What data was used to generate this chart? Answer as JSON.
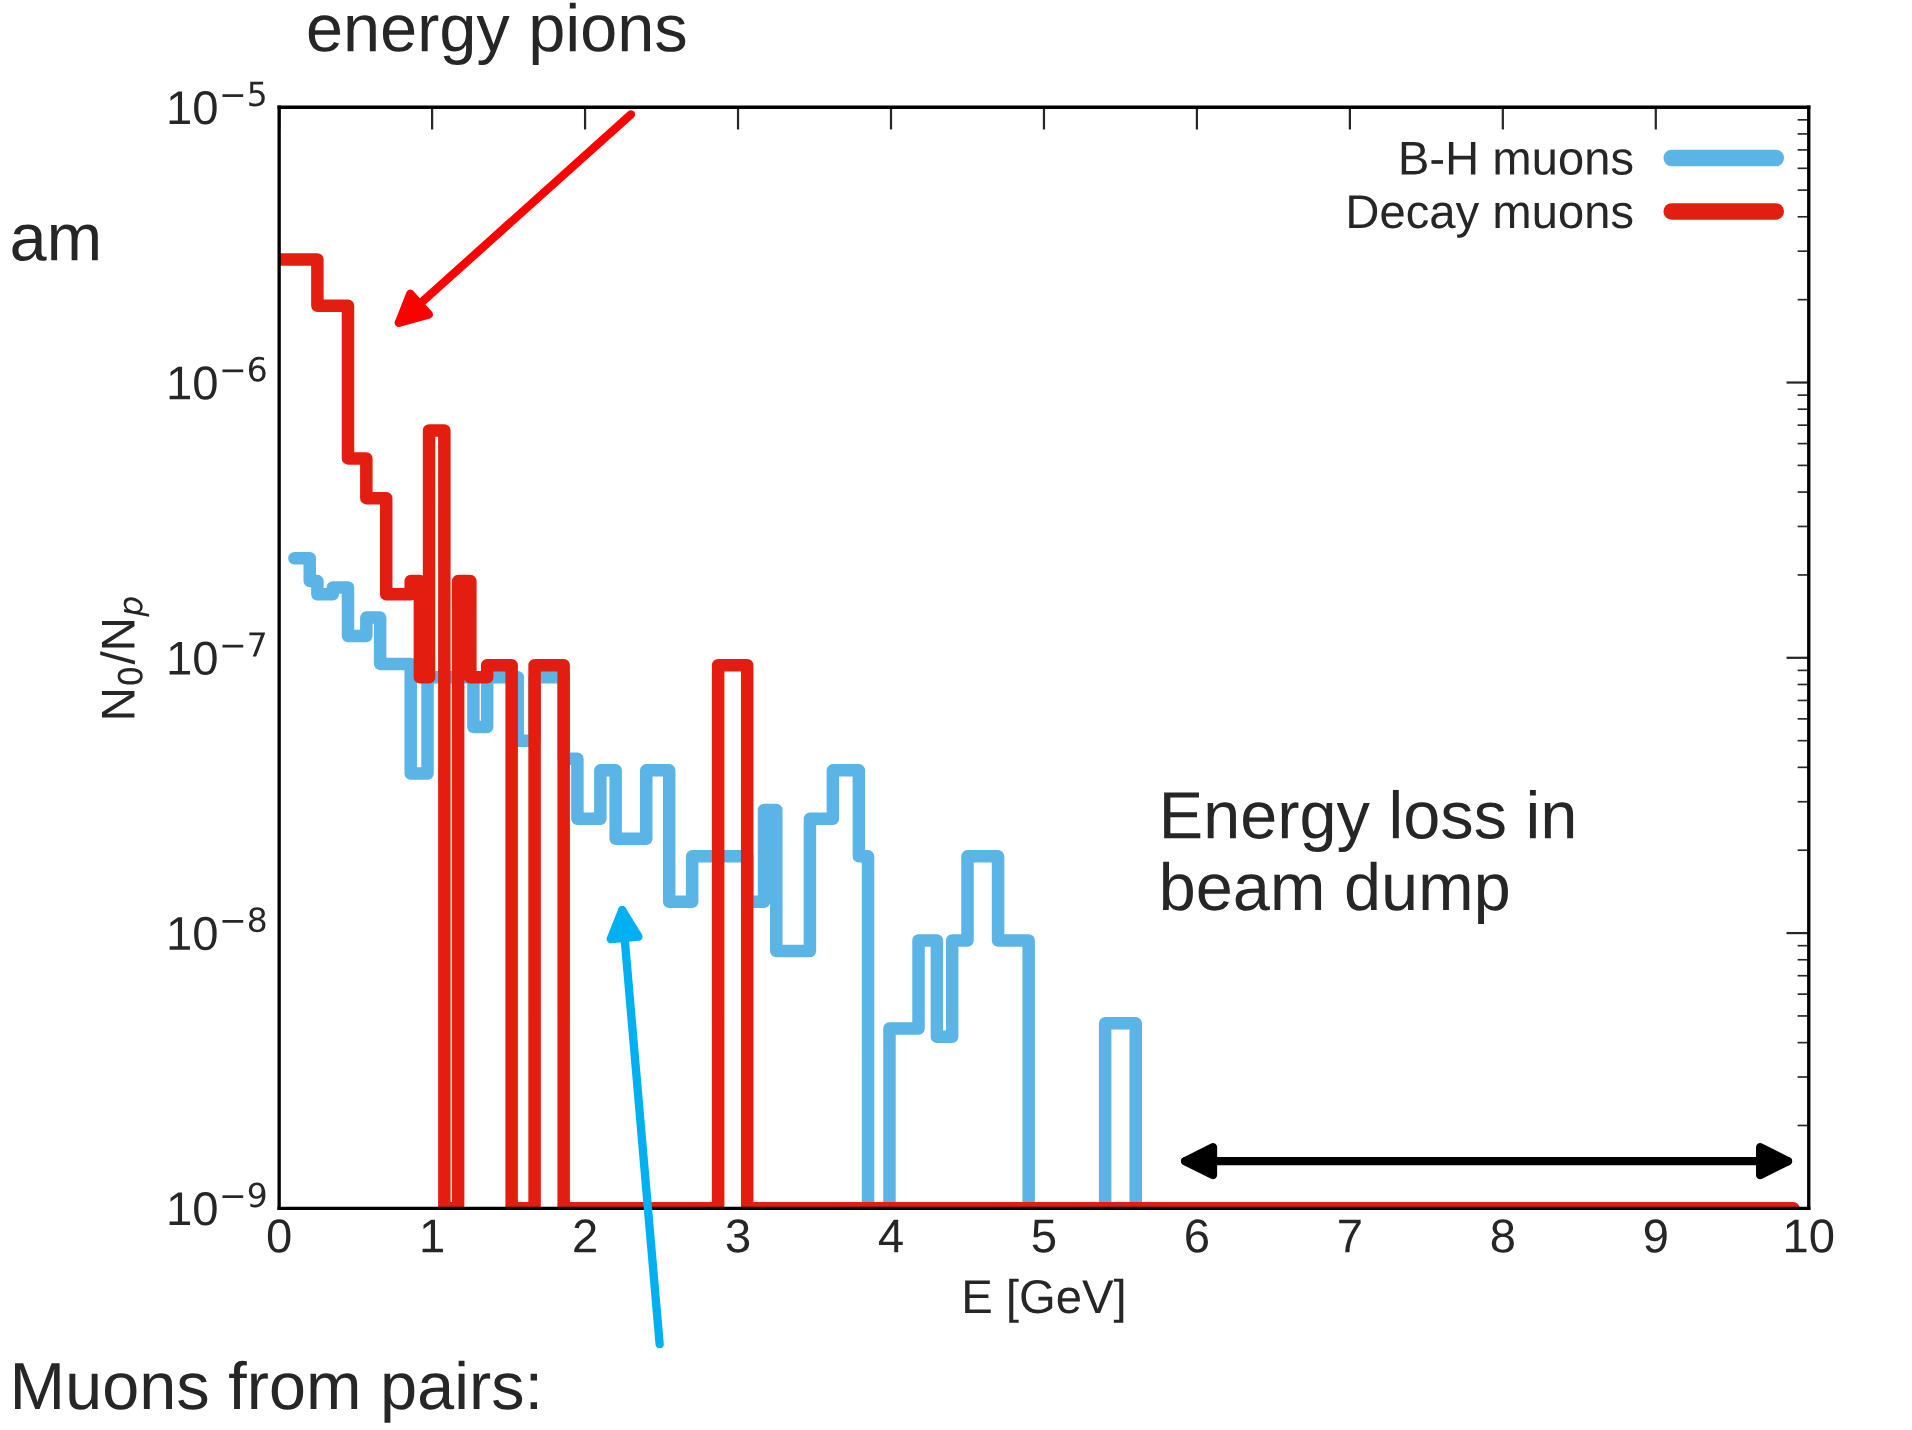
{
  "chart_data": {
    "type": "step",
    "xlabel": "E [GeV]",
    "ylabel": "N$_{0}$/N$_{p}$",
    "xlim": [
      0,
      10
    ],
    "xticks": [
      0,
      1,
      2,
      3,
      4,
      5,
      6,
      7,
      8,
      9,
      10
    ],
    "ylim": [
      1e-09,
      1e-05
    ],
    "log": true,
    "yticks": [
      {
        "value": 1e-09,
        "label": "10$^{−9}$"
      },
      {
        "value": 1e-08,
        "label": "10$^{−8}$"
      },
      {
        "value": 1e-07,
        "label": "10$^{−7}$"
      },
      {
        "value": 1e-06,
        "label": "10$^{−6}$"
      },
      {
        "value": 1e-05,
        "label": "10$^{−5}$"
      }
    ],
    "legend": "top right",
    "grid": false,
    "series": [
      {
        "name": "B-H muons",
        "color": "#5ab4e6",
        "x": [
          0.1,
          0.2,
          0.25,
          0.35,
          0.45,
          0.57,
          0.66,
          0.86,
          0.97,
          1.27,
          1.36,
          1.56,
          1.67,
          1.86,
          1.95,
          2.1,
          2.2,
          2.4,
          2.55,
          2.7,
          2.9,
          3.06,
          3.17,
          3.25,
          3.47,
          3.62,
          3.79,
          3.85,
          3.99,
          4.18,
          4.3,
          4.4,
          4.5,
          4.7,
          4.9,
          5.4,
          5.6
        ],
        "values": [
          2.3e-07,
          1.9e-07,
          1.7e-07,
          1.8e-07,
          1.2e-07,
          1.4e-07,
          9.5e-08,
          3.8e-08,
          8.5e-08,
          5.6e-08,
          8.5e-08,
          5e-08,
          8.5e-08,
          4.3e-08,
          2.6e-08,
          3.9e-08,
          2.2e-08,
          3.9e-08,
          1.3e-08,
          1.9e-08,
          1.9e-08,
          1.3e-08,
          2.8e-08,
          8.6e-09,
          2.6e-08,
          3.9e-08,
          1.9e-08,
          1e-09,
          4.5e-09,
          9.4e-09,
          4.2e-09,
          9.4e-09,
          1.9e-08,
          9.4e-09,
          1e-09,
          4.7e-09,
          1e-09
        ]
      },
      {
        "name": "Decay muons",
        "color": "#e31e10",
        "x": [
          0,
          0.25,
          0.45,
          0.57,
          0.7,
          0.86,
          0.92,
          0.98,
          1.08,
          1.17,
          1.25,
          1.36,
          1.52,
          1.67,
          1.86,
          2.87,
          3.06,
          9.9
        ],
        "values": [
          2.8e-06,
          1.9e-06,
          5.3e-07,
          3.8e-07,
          1.7e-07,
          1.9e-07,
          8.5e-08,
          6.7e-07,
          1e-09,
          1.9e-07,
          8.5e-08,
          9.4e-08,
          1e-09,
          9.4e-08,
          1e-09,
          9.4e-08,
          1e-09,
          1e-09
        ]
      }
    ],
    "annotations": [
      "energy pions",
      "am",
      "Muons from pairs:",
      "Energy loss in\nbeam dump"
    ]
  }
}
